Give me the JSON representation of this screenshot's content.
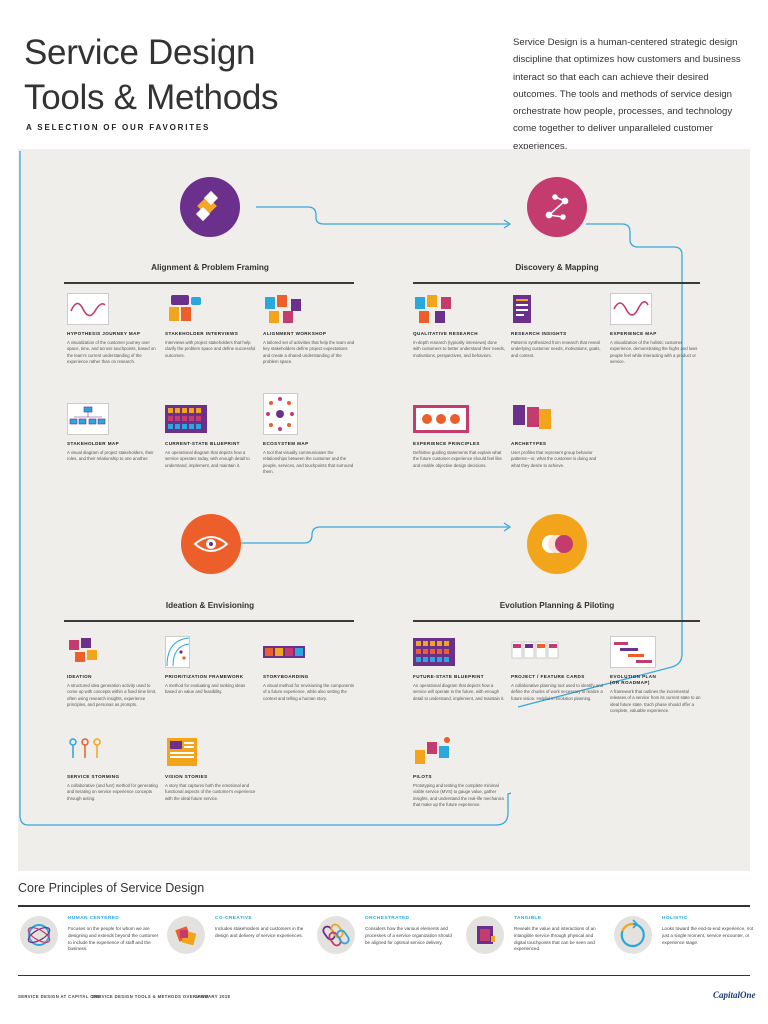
{
  "header": {
    "title_line1": "Service Design",
    "title_line2": "Tools & Methods",
    "subtitle": "A SELECTION OF OUR FAVORITES",
    "intro": "Service Design is a human-centered strategic design discipline that optimizes how customers and business interact so that each can achieve their desired outcomes. The tools and methods of service design orchestrate how people, processes, and technology come together to deliver unparalleled customer experiences."
  },
  "colors": {
    "panel_bg": "#efeeea",
    "flow_line": "#39a9dc",
    "alignment": "#6b2f8c",
    "discovery": "#c43b6e",
    "ideation": "#ec5e2a",
    "evolution": "#f2a51a",
    "accent_blue": "#2aa7dc"
  },
  "phases": [
    {
      "id": "alignment",
      "icon": "puzzle-pieces-icon",
      "title": "Alignment & Problem Framing"
    },
    {
      "id": "discovery",
      "icon": "constellation-icon",
      "title": "Discovery & Mapping"
    },
    {
      "id": "ideation",
      "icon": "eye-icon",
      "title": "Ideation & Envisioning"
    },
    {
      "id": "evolution",
      "icon": "overlapping-circles-icon",
      "title": "Evolution Planning & Piloting"
    }
  ],
  "tools": {
    "alignment": [
      {
        "name": "Hypothesis Journey Map",
        "icon": "wave-chart-icon",
        "desc": "A visualization of the customer journey over space, time, and across touchpoints, based on the team's current understanding of the experience rather than on research."
      },
      {
        "name": "Stakeholder Interviews",
        "icon": "interview-icon",
        "desc": "Interviews with project stakeholders that help clarify the problem space and define successful outcomes."
      },
      {
        "name": "Alignment Workshop",
        "icon": "workshop-icon",
        "desc": "A tailored set of activities that help the team and key stakeholders define project expectations and create a shared understanding of the problem space."
      },
      {
        "name": "Stakeholder Map",
        "icon": "org-chart-icon",
        "desc": "A visual diagram of project stakeholders, their roles, and their relationship to one another."
      },
      {
        "name": "Current-State Blueprint",
        "icon": "blueprint-grid-icon",
        "desc": "An operational diagram that depicts how a service operates today, with enough detail to understand, implement, and maintain it."
      },
      {
        "name": "Ecosystem Map",
        "icon": "ecosystem-icon",
        "desc": "A tool that visually communicates the relationships between the customer and the people, services, and touchpoints that surround them."
      }
    ],
    "discovery": [
      {
        "name": "Qualitative Research",
        "icon": "research-icon",
        "desc": "In-depth research (typically interviews) done with customers to better understand their needs, motivations, perspectives, and behaviors."
      },
      {
        "name": "Research Insights",
        "icon": "insights-document-icon",
        "desc": "Patterns synthesized from research that reveal underlying customer needs, motivations, goals, and context."
      },
      {
        "name": "Experience Map",
        "icon": "experience-wave-icon",
        "desc": "A visualization of the holistic customer experience, demonstrating the highs and lows people feel while interacting with a product or service."
      },
      {
        "name": "Experience Principles",
        "icon": "principles-card-icon",
        "desc": "Definitive guiding statements that explain what the future customer experience should feel like and enable objective design decisions."
      },
      {
        "name": "Archetypes",
        "icon": "archetype-cards-icon",
        "desc": "User profiles that represent group behavior patterns—or, what the customer is doing and what they desire to achieve."
      }
    ],
    "ideation": [
      {
        "name": "Ideation",
        "icon": "ideation-icon",
        "desc": "A structured idea generation activity used to come up with concepts within a fixed time limit, often using research insights, experience principles, and personas as prompts."
      },
      {
        "name": "Prioritization Framework",
        "icon": "prioritization-icon",
        "desc": "A method for evaluating and ranking ideas based on value and feasibility."
      },
      {
        "name": "Storyboarding",
        "icon": "storyboard-icon",
        "desc": "A visual method for envisioning the components of a future experience, while also setting the context and telling a human story."
      },
      {
        "name": "Service Storming",
        "icon": "people-icon",
        "desc": "A collaborative (and fun!) method for generating and iterating on service experience concepts through acting."
      },
      {
        "name": "Vision Stories",
        "icon": "vision-story-icon",
        "desc": "A story that captures both the emotional and functional aspects of the customer's experience with the ideal future service."
      }
    ],
    "evolution": [
      {
        "name": "Future-State Blueprint",
        "icon": "future-blueprint-icon",
        "desc": "An operational diagram that depicts how a service will operate in the future, with enough detail to understand, implement, and maintain it."
      },
      {
        "name": "Project / Feature Cards",
        "icon": "feature-cards-icon",
        "desc": "A collaborative planning tool used to identify and define the chunks of work necessary to realize a future vision. Helpful in evolution planning."
      },
      {
        "name": "Evolution Plan\n(or Roadmap)",
        "icon": "roadmap-icon",
        "desc": "A framework that outlines the incremental releases of a service from its current state to an ideal future state. Each phase should offer a complete, valuable experience."
      },
      {
        "name": "Pilots",
        "icon": "pilots-icon",
        "desc": "Prototyping and testing the complete minimal viable service (MVS) to gauge value, gather insights, and understand the real-life mechanics that make up the future experience."
      }
    ]
  },
  "core": {
    "title": "Core Principles of Service Design",
    "principles": [
      {
        "name": "Human Centered",
        "icon": "human-globe-icon",
        "desc": "Focuses on the people for whom we are designing and extends beyond the customer to include the experience of staff and the business."
      },
      {
        "name": "Co-Creative",
        "icon": "hands-icon",
        "desc": "Includes stakeholders and customers in the design and delivery of service experiences."
      },
      {
        "name": "Orchestrated",
        "icon": "orchestrated-icon",
        "desc": "Considers how the various elements and processes of a service organization should be aligned for optimal service delivery."
      },
      {
        "name": "Tangible",
        "icon": "tangible-icon",
        "desc": "Reveals the value and interactions of an intangible service through physical and digital touchpoints that can be seen and experienced."
      },
      {
        "name": "Holistic",
        "icon": "cycle-icon",
        "desc": "Looks toward the end-to-end experience, not just a single moment, service encounter, or experience stage."
      }
    ]
  },
  "footer": {
    "left": "Service Design at Capital One",
    "middle": "Service Design Tools & Methods Overview",
    "date": "January 2018",
    "logo": "CapitalOne"
  }
}
